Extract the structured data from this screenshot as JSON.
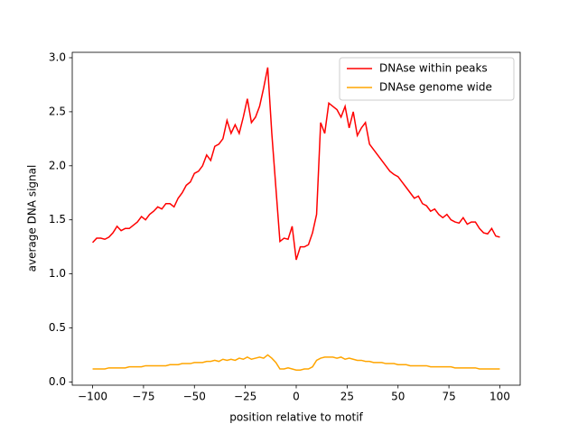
{
  "chart_data": {
    "type": "line",
    "xlabel": "position relative to motif",
    "ylabel": "average DNA signal",
    "x": [
      -100,
      -98,
      -96,
      -94,
      -92,
      -90,
      -88,
      -86,
      -84,
      -82,
      -80,
      -78,
      -76,
      -74,
      -72,
      -70,
      -68,
      -66,
      -64,
      -62,
      -60,
      -58,
      -56,
      -54,
      -52,
      -50,
      -48,
      -46,
      -44,
      -42,
      -40,
      -38,
      -36,
      -34,
      -32,
      -30,
      -28,
      -26,
      -24,
      -22,
      -20,
      -18,
      -16,
      -14,
      -12,
      -10,
      -8,
      -6,
      -4,
      -2,
      0,
      2,
      4,
      6,
      8,
      10,
      12,
      14,
      16,
      18,
      20,
      22,
      24,
      26,
      28,
      30,
      32,
      34,
      36,
      38,
      40,
      42,
      44,
      46,
      48,
      50,
      52,
      54,
      56,
      58,
      60,
      62,
      64,
      66,
      68,
      70,
      72,
      74,
      76,
      78,
      80,
      82,
      84,
      86,
      88,
      90,
      92,
      94,
      96,
      98,
      100
    ],
    "series": [
      {
        "name": "DNAse within peaks",
        "color": "#ff0000",
        "values": [
          1.29,
          1.33,
          1.33,
          1.32,
          1.34,
          1.38,
          1.44,
          1.4,
          1.42,
          1.42,
          1.45,
          1.48,
          1.53,
          1.5,
          1.55,
          1.58,
          1.62,
          1.6,
          1.65,
          1.65,
          1.62,
          1.7,
          1.75,
          1.82,
          1.85,
          1.93,
          1.95,
          2.0,
          2.1,
          2.05,
          2.18,
          2.2,
          2.25,
          2.42,
          2.3,
          2.38,
          2.3,
          2.45,
          2.62,
          2.4,
          2.45,
          2.55,
          2.72,
          2.91,
          2.3,
          1.8,
          1.3,
          1.33,
          1.32,
          1.44,
          1.13,
          1.25,
          1.25,
          1.27,
          1.38,
          1.55,
          2.4,
          2.3,
          2.58,
          2.55,
          2.52,
          2.45,
          2.55,
          2.35,
          2.5,
          2.28,
          2.35,
          2.4,
          2.2,
          2.15,
          2.1,
          2.05,
          2.0,
          1.95,
          1.92,
          1.9,
          1.85,
          1.8,
          1.75,
          1.7,
          1.72,
          1.65,
          1.63,
          1.58,
          1.6,
          1.55,
          1.52,
          1.55,
          1.5,
          1.48,
          1.47,
          1.52,
          1.46,
          1.48,
          1.48,
          1.42,
          1.38,
          1.37,
          1.42,
          1.35,
          1.34
        ]
      },
      {
        "name": "DNAse genome wide",
        "color": "#ffa500",
        "values": [
          0.12,
          0.12,
          0.12,
          0.12,
          0.13,
          0.13,
          0.13,
          0.13,
          0.13,
          0.14,
          0.14,
          0.14,
          0.14,
          0.15,
          0.15,
          0.15,
          0.15,
          0.15,
          0.15,
          0.16,
          0.16,
          0.16,
          0.17,
          0.17,
          0.17,
          0.18,
          0.18,
          0.18,
          0.19,
          0.19,
          0.2,
          0.19,
          0.21,
          0.2,
          0.21,
          0.2,
          0.22,
          0.21,
          0.23,
          0.21,
          0.22,
          0.23,
          0.22,
          0.25,
          0.22,
          0.18,
          0.12,
          0.12,
          0.13,
          0.12,
          0.11,
          0.11,
          0.12,
          0.12,
          0.14,
          0.2,
          0.22,
          0.23,
          0.23,
          0.23,
          0.22,
          0.23,
          0.21,
          0.22,
          0.21,
          0.2,
          0.2,
          0.19,
          0.19,
          0.18,
          0.18,
          0.18,
          0.17,
          0.17,
          0.17,
          0.16,
          0.16,
          0.16,
          0.15,
          0.15,
          0.15,
          0.15,
          0.15,
          0.14,
          0.14,
          0.14,
          0.14,
          0.14,
          0.14,
          0.13,
          0.13,
          0.13,
          0.13,
          0.13,
          0.13,
          0.12,
          0.12,
          0.12,
          0.12,
          0.12,
          0.12
        ]
      }
    ],
    "xlim": [
      -110,
      110
    ],
    "ylim": [
      -0.03,
      3.05
    ],
    "xticks": [
      {
        "value": -100,
        "label": "−100"
      },
      {
        "value": -75,
        "label": "−75"
      },
      {
        "value": -50,
        "label": "−50"
      },
      {
        "value": -25,
        "label": "−25"
      },
      0,
      25,
      50,
      75,
      100
    ],
    "yticks": [
      {
        "value": 0,
        "label": "0.0"
      },
      0.5,
      {
        "value": 1,
        "label": "1.0"
      },
      1.5,
      {
        "value": 2,
        "label": "2.0"
      },
      2.5,
      {
        "value": 3,
        "label": "3.0"
      }
    ],
    "legend": "upper right",
    "grid": false
  }
}
